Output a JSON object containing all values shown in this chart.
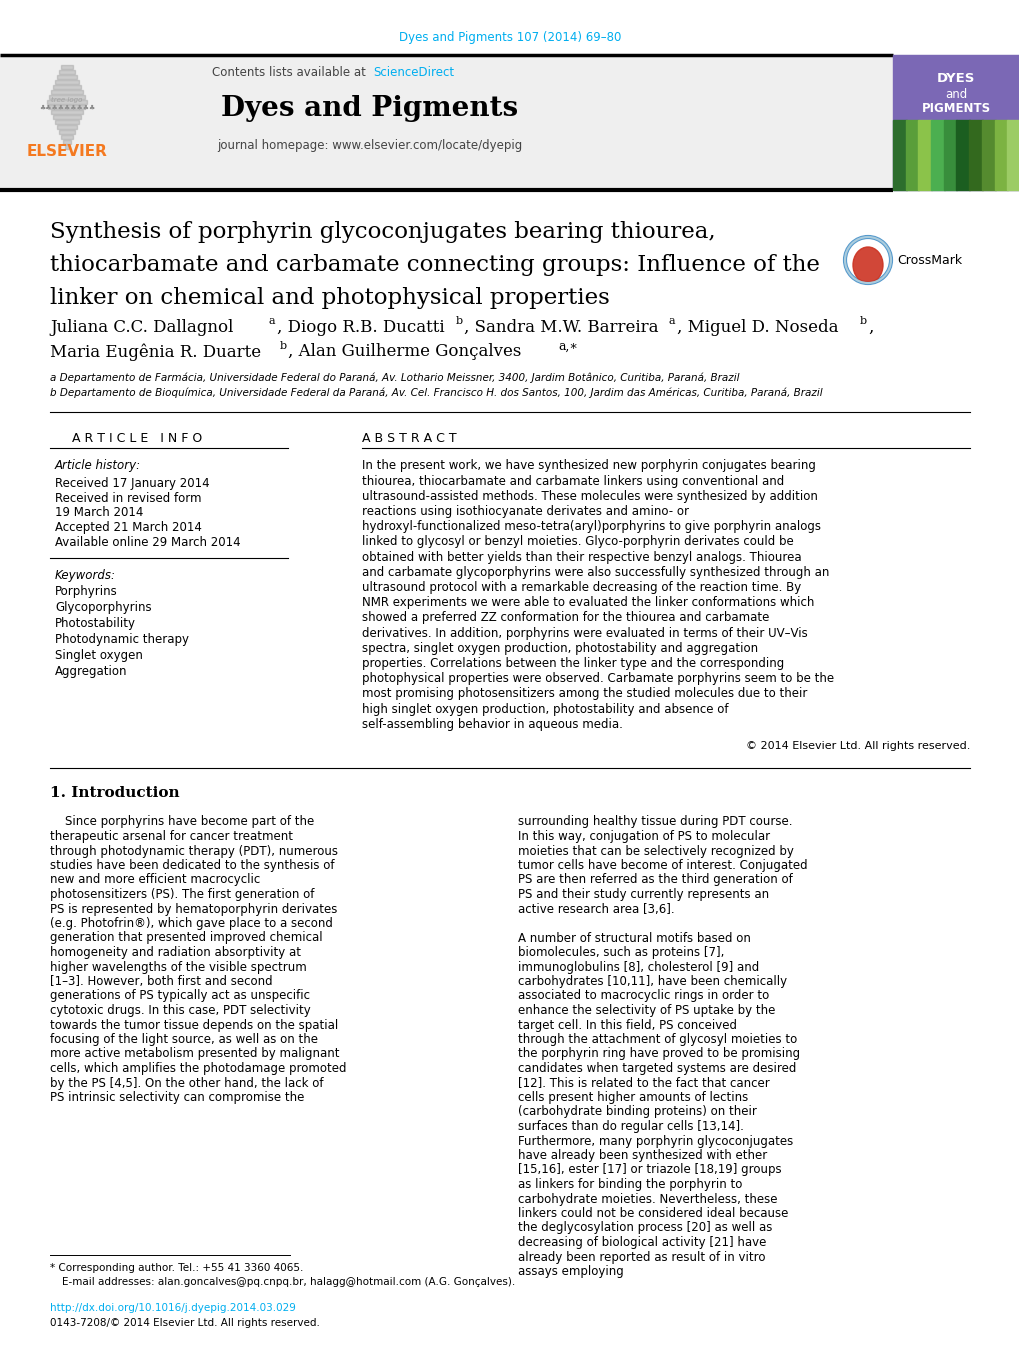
{
  "journal_ref": "Dyes and Pigments 107 (2014) 69–80",
  "contents_text": "Contents lists available at ",
  "sciencedirect": "ScienceDirect",
  "journal_name": "Dyes and Pigments",
  "journal_homepage": "journal homepage: www.elsevier.com/locate/dyepig",
  "title_line1": "Synthesis of porphyrin glycoconjugates bearing thiourea,",
  "title_line2": "thiocarbamate and carbamate connecting groups: Influence of the",
  "title_line3": "linker on chemical and photophysical properties",
  "affil_a": "a Departamento de Farmácia, Universidade Federal do Paraná, Av. Lothario Meissner, 3400, Jardim Botânico, Curitiba, Paraná, Brazil",
  "affil_b": "b Departamento de Bioquímica, Universidade Federal da Paraná, Av. Cel. Francisco H. dos Santos, 100, Jardim das Américas, Curitiba, Paraná, Brazil",
  "article_info_header": "A R T I C L E   I N F O",
  "abstract_header": "A B S T R A C T",
  "article_history_label": "Article history:",
  "received": "Received 17 January 2014",
  "received_revised": "Received in revised form",
  "revised_date": "19 March 2014",
  "accepted": "Accepted 21 March 2014",
  "available": "Available online 29 March 2014",
  "keywords_label": "Keywords:",
  "keywords": [
    "Porphyrins",
    "Glycoporphyrins",
    "Photostability",
    "Photodynamic therapy",
    "Singlet oxygen",
    "Aggregation"
  ],
  "abstract_text": "In the present work, we have synthesized new porphyrin conjugates bearing thiourea, thiocarbamate and carbamate linkers using conventional and ultrasound-assisted methods. These molecules were synthesized by addition reactions using isothiocyanate derivates and amino- or hydroxyl-functionalized meso-tetra(aryl)porphyrins to give porphyrin analogs linked to glycosyl or benzyl moieties. Glyco-porphyrin derivates could be obtained with better yields than their respective benzyl analogs. Thiourea and carbamate glycoporphyrins were also successfully synthesized through an ultrasound protocol with a remarkable decreasing of the reaction time. By NMR experiments we were able to evaluated the linker conformations which showed a preferred ZZ conformation for the thiourea and carbamate derivatives. In addition, porphyrins were evaluated in terms of their UV–Vis spectra, singlet oxygen production, photostability and aggregation properties. Correlations between the linker type and the corresponding photophysical properties were observed. Carbamate porphyrins seem to be the most promising photosensitizers among the studied molecules due to their high singlet oxygen production, photostability and absence of self-assembling behavior in aqueous media.",
  "copyright": "© 2014 Elsevier Ltd. All rights reserved.",
  "intro_header": "1. Introduction",
  "intro_col1": "Since porphyrins have become part of the therapeutic arsenal for cancer treatment through photodynamic therapy (PDT), numerous studies have been dedicated to the synthesis of new and more efficient macrocyclic photosensitizers (PS). The first generation of PS is represented by hematoporphyrin derivates (e.g. Photofrin®), which gave place to a second generation that presented improved chemical homogeneity and radiation absorptivity at higher wavelengths of the visible spectrum [1–3]. However, both first and second generations of PS typically act as unspecific cytotoxic drugs. In this case, PDT selectivity towards the tumor tissue depends on the spatial focusing of the light source, as well as on the more active metabolism presented by malignant cells, which amplifies the photodamage promoted by the PS [4,5]. On the other hand, the lack of PS intrinsic selectivity can compromise the",
  "intro_col2": "surrounding healthy tissue during PDT course. In this way, conjugation of PS to molecular moieties that can be selectively recognized by tumor cells have become of interest. Conjugated PS are then referred as the third generation of PS and their study currently represents an active research area [3,6].\n   A number of structural motifs based on biomolecules, such as proteins [7], immunoglobulins [8], cholesterol [9] and carbohydrates [10,11], have been chemically associated to macrocyclic rings in order to enhance the selectivity of PS uptake by the target cell. In this field, PS conceived through the attachment of glycosyl moieties to the porphyrin ring have proved to be promising candidates when targeted systems are desired [12]. This is related to the fact that cancer cells present higher amounts of lectins (carbohydrate binding proteins) on their surfaces than do regular cells [13,14]. Furthermore, many porphyrin glycoconjugates have already been synthesized with ether [15,16], ester [17] or triazole [18,19] groups as linkers for binding the porphyrin to carbohydrate moieties. Nevertheless, these linkers could not be considered ideal because the deglycosylation process [20] as well as decreasing of biological activity [21] have already been reported as result of in vitro assays employing",
  "doi_text": "http://dx.doi.org/10.1016/j.dyepig.2014.03.029",
  "issn_text": "0143-7208/© 2014 Elsevier Ltd. All rights reserved.",
  "corresponding_text": "* Corresponding author. Tel.: +55 41 3360 4065.",
  "email_text": "E-mail addresses: alan.goncalves@pq.cnpq.br, halagg@hotmail.com (A.G. Gonçalves).",
  "bg_color": "#ffffff",
  "light_gray": "#efefef",
  "cyan_color": "#00aeef",
  "orange_color": "#f47920",
  "elsevier_purple": "#7b68b5"
}
